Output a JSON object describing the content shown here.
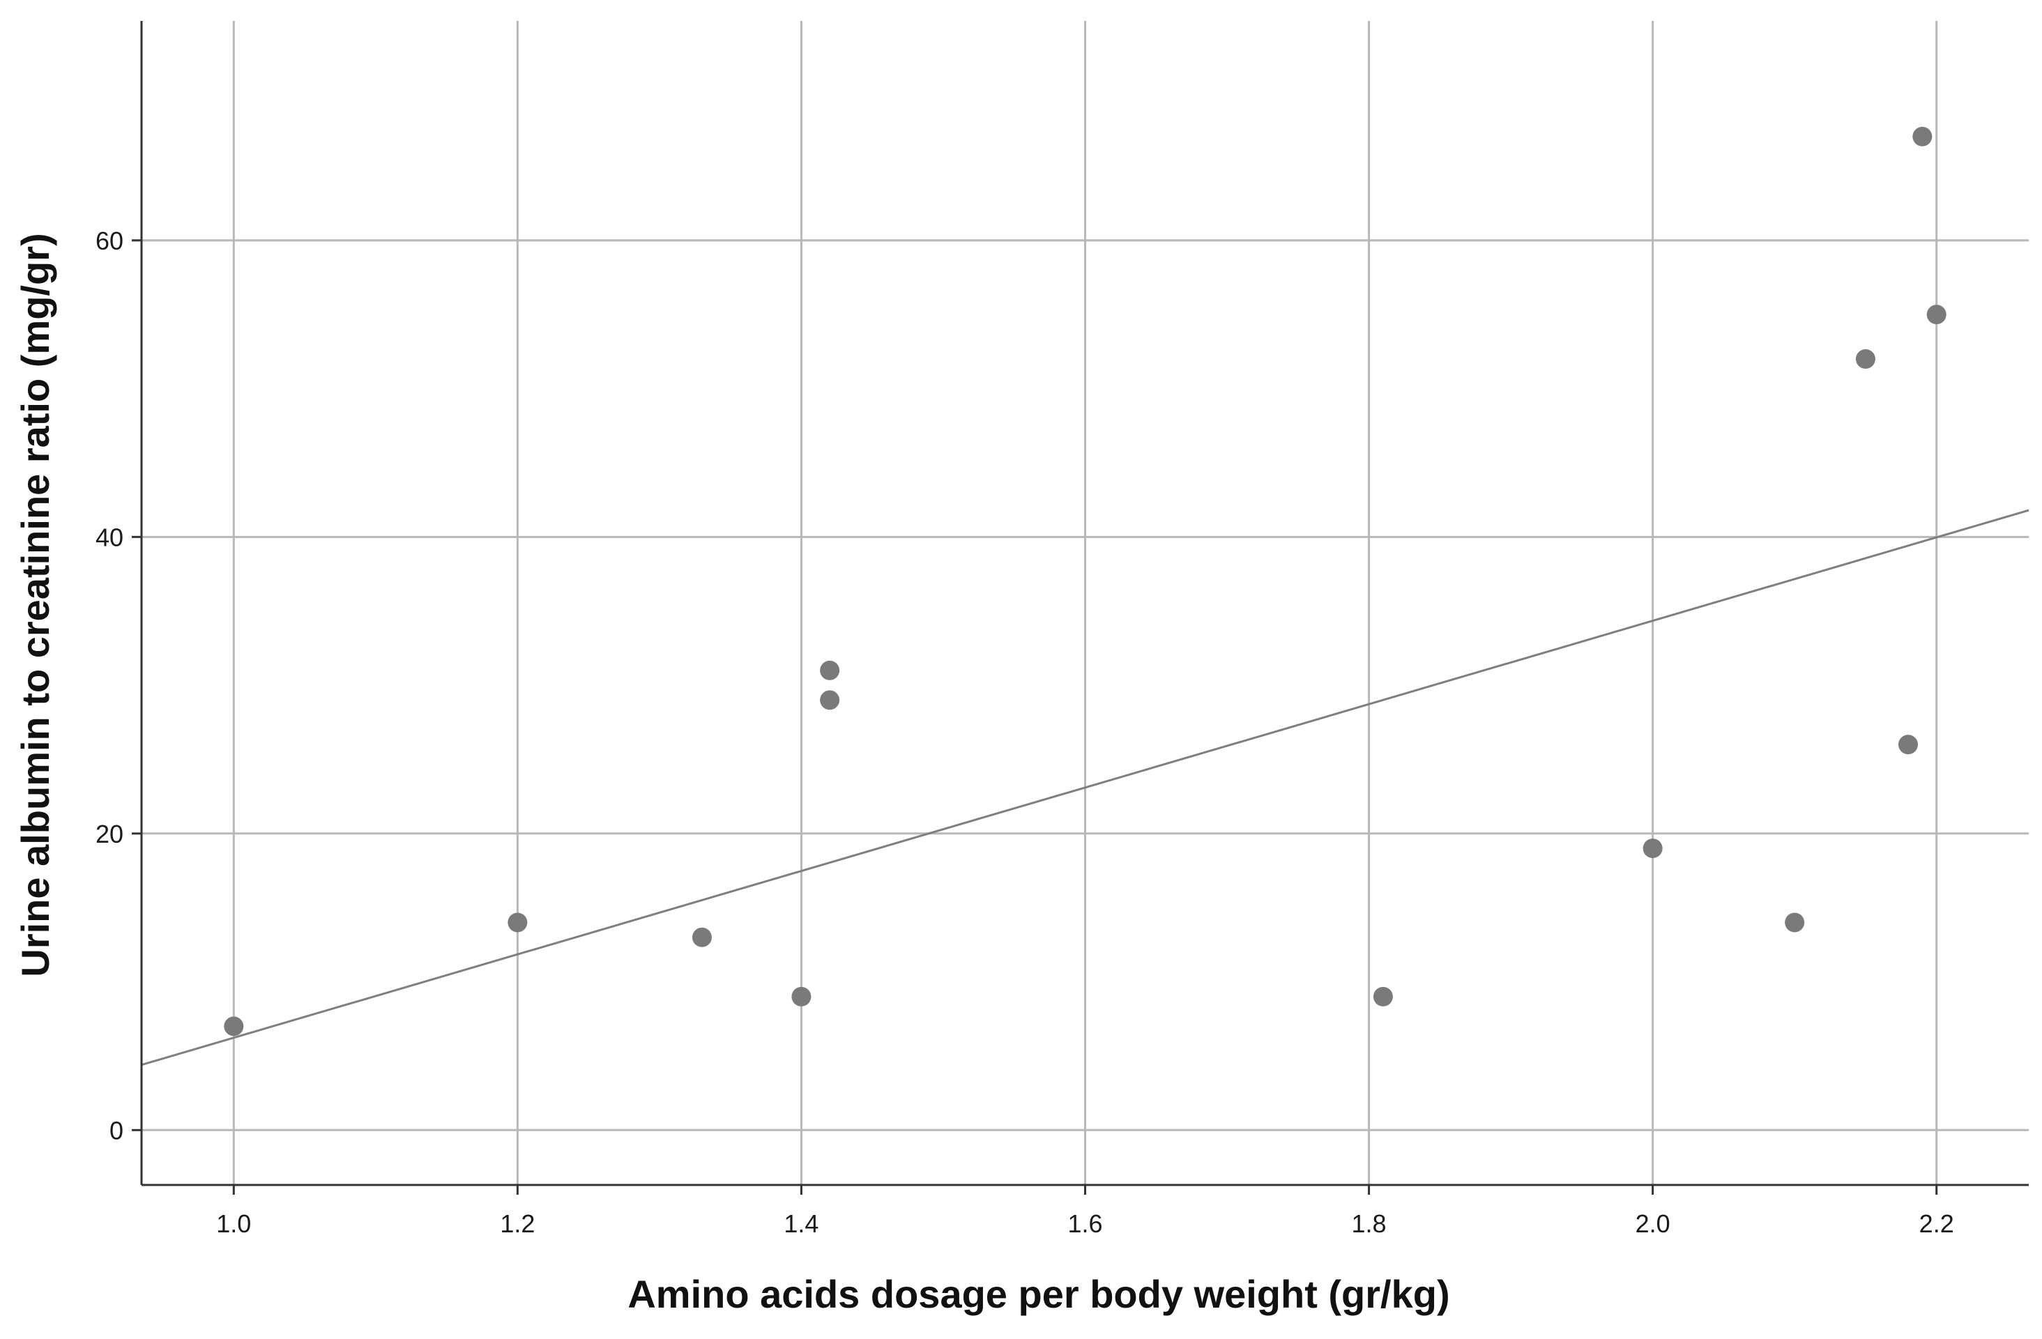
{
  "chart_data": {
    "type": "scatter",
    "title": "",
    "xlabel": "Amino acids dosage per body weight (gr/kg)",
    "ylabel": "Urine albumin to creatinine ratio (mg/gr)",
    "xlim": [
      0.935,
      2.265
    ],
    "ylim": [
      -3.7,
      74.8
    ],
    "x_ticks": [
      1.0,
      1.2,
      1.4,
      1.6,
      1.8,
      2.0,
      2.2
    ],
    "x_tick_labels": [
      "1.0",
      "1.2",
      "1.4",
      "1.6",
      "1.8",
      "2.0",
      "2.2"
    ],
    "y_ticks": [
      0,
      20,
      40,
      60
    ],
    "y_tick_labels": [
      "0",
      "20",
      "40",
      "60"
    ],
    "grid": true,
    "points": [
      {
        "x": 1.0,
        "y": 7
      },
      {
        "x": 1.2,
        "y": 14
      },
      {
        "x": 1.33,
        "y": 13
      },
      {
        "x": 1.4,
        "y": 9
      },
      {
        "x": 1.42,
        "y": 31
      },
      {
        "x": 1.42,
        "y": 29
      },
      {
        "x": 1.81,
        "y": 9
      },
      {
        "x": 2.0,
        "y": 19
      },
      {
        "x": 2.1,
        "y": 14
      },
      {
        "x": 2.15,
        "y": 52
      },
      {
        "x": 2.18,
        "y": 26
      },
      {
        "x": 2.19,
        "y": 67
      },
      {
        "x": 2.2,
        "y": 55
      }
    ],
    "fit_line": {
      "x": [
        0.935,
        2.265
      ],
      "y": [
        4.4,
        41.8
      ]
    },
    "colors": {
      "point": "#7a7a7a",
      "grid": "#b8b8b8",
      "fit": "#7f7f7f",
      "axis": "#333333"
    }
  }
}
